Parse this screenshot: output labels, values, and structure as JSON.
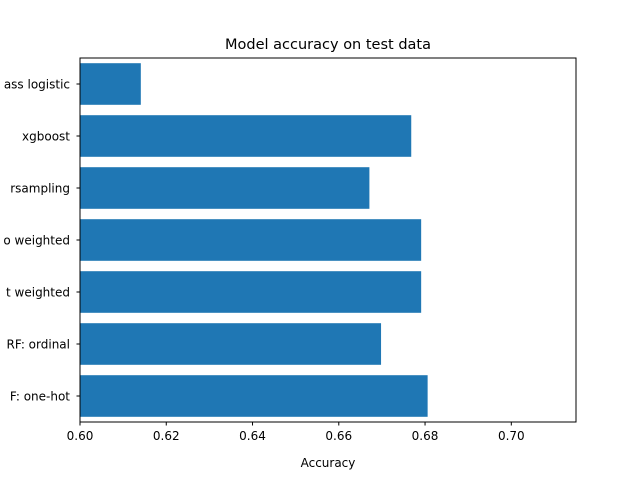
{
  "chart_data": {
    "type": "bar",
    "orientation": "horizontal",
    "title": "Model accuracy on test data",
    "xlabel": "Accuracy",
    "ylabel": "",
    "categories": [
      "ass logistic",
      "xgboost",
      "rsampling",
      "o weighted",
      "t weighted",
      "RF: ordinal",
      "F: one-hot"
    ],
    "values": [
      0.6141,
      0.6768,
      0.6671,
      0.6791,
      0.6791,
      0.6698,
      0.6806
    ],
    "xlim": [
      0.6,
      0.715
    ],
    "xticks": [
      "0.60",
      "0.62",
      "0.64",
      "0.66",
      "0.68",
      "0.70"
    ],
    "bar_color": "#1f77b4",
    "grid": false
  }
}
